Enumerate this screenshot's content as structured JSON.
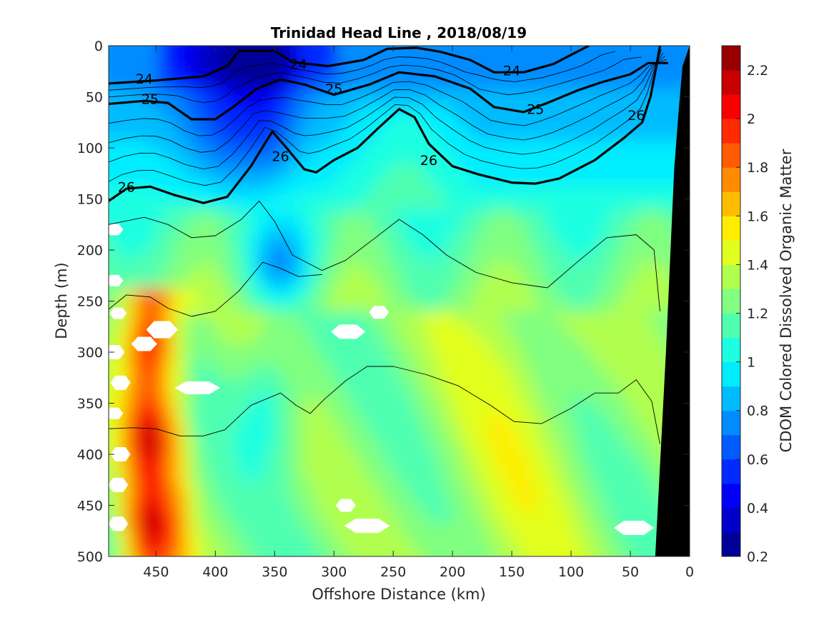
{
  "chart_data": {
    "type": "heatmap",
    "title": "Trinidad Head Line , 2018/08/19",
    "xlabel": "Offshore Distance (km)",
    "ylabel": "Depth (m)",
    "colorbar_label": "CDOM Colored Dissolved Organic Matter",
    "xlim": [
      490,
      0
    ],
    "ylim": [
      0,
      500
    ],
    "x_ticks": [
      450,
      400,
      350,
      300,
      250,
      200,
      150,
      100,
      50,
      0
    ],
    "y_ticks": [
      0,
      50,
      100,
      150,
      200,
      250,
      300,
      350,
      400,
      450,
      500
    ],
    "colorbar_ticks": [
      0.2,
      0.4,
      0.6,
      0.8,
      1,
      1.2,
      1.4,
      1.6,
      1.8,
      2,
      2.2
    ],
    "clim": [
      0.2,
      2.3
    ],
    "colormap": "jet",
    "grid": false,
    "contours": [
      {
        "level": 24,
        "label": "24",
        "bold": true,
        "points": [
          [
            490,
            37
          ],
          [
            450,
            34
          ],
          [
            410,
            30
          ],
          [
            390,
            20
          ],
          [
            380,
            5
          ],
          [
            350,
            5
          ],
          [
            335,
            16
          ],
          [
            305,
            20
          ],
          [
            275,
            14
          ],
          [
            255,
            3
          ],
          [
            230,
            2
          ],
          [
            210,
            6
          ],
          [
            185,
            14
          ],
          [
            165,
            26
          ],
          [
            140,
            26
          ],
          [
            115,
            18
          ],
          [
            95,
            6
          ],
          [
            85,
            0
          ]
        ]
      },
      {
        "level": 25,
        "label": "25",
        "bold": true,
        "points": [
          [
            490,
            57
          ],
          [
            460,
            54
          ],
          [
            440,
            56
          ],
          [
            420,
            72
          ],
          [
            400,
            72
          ],
          [
            385,
            60
          ],
          [
            365,
            42
          ],
          [
            345,
            33
          ],
          [
            325,
            38
          ],
          [
            300,
            48
          ],
          [
            270,
            38
          ],
          [
            245,
            26
          ],
          [
            215,
            30
          ],
          [
            185,
            42
          ],
          [
            165,
            60
          ],
          [
            140,
            65
          ],
          [
            120,
            56
          ],
          [
            95,
            44
          ],
          [
            75,
            36
          ],
          [
            50,
            28
          ],
          [
            35,
            17
          ],
          [
            18,
            17
          ]
        ]
      },
      {
        "level": 26,
        "label": "26",
        "bold": true,
        "points": [
          [
            490,
            152
          ],
          [
            475,
            140
          ],
          [
            455,
            138
          ],
          [
            435,
            146
          ],
          [
            410,
            154
          ],
          [
            390,
            148
          ],
          [
            370,
            118
          ],
          [
            352,
            84
          ],
          [
            340,
            100
          ],
          [
            325,
            121
          ],
          [
            315,
            124
          ],
          [
            300,
            112
          ],
          [
            280,
            100
          ],
          [
            262,
            80
          ],
          [
            245,
            62
          ],
          [
            232,
            70
          ],
          [
            220,
            96
          ],
          [
            200,
            118
          ],
          [
            178,
            126
          ],
          [
            150,
            134
          ],
          [
            130,
            135
          ],
          [
            110,
            130
          ],
          [
            80,
            112
          ],
          [
            55,
            90
          ],
          [
            40,
            75
          ],
          [
            33,
            50
          ],
          [
            28,
            20
          ],
          [
            25,
            0
          ]
        ]
      },
      {
        "level": 26.5,
        "label": "",
        "bold": false,
        "points": [
          [
            490,
            175
          ],
          [
            460,
            168
          ],
          [
            440,
            175
          ],
          [
            420,
            188
          ],
          [
            400,
            186
          ],
          [
            378,
            170
          ],
          [
            363,
            152
          ],
          [
            350,
            172
          ],
          [
            335,
            205
          ],
          [
            310,
            220
          ],
          [
            290,
            210
          ],
          [
            265,
            188
          ],
          [
            245,
            170
          ],
          [
            225,
            185
          ],
          [
            205,
            205
          ],
          [
            180,
            222
          ],
          [
            150,
            232
          ],
          [
            120,
            237
          ],
          [
            95,
            212
          ],
          [
            70,
            188
          ],
          [
            45,
            185
          ],
          [
            30,
            200
          ],
          [
            25,
            260
          ]
        ]
      },
      {
        "level": 26.7,
        "label": "",
        "bold": false,
        "points": [
          [
            490,
            258
          ],
          [
            475,
            244
          ],
          [
            455,
            246
          ],
          [
            440,
            257
          ],
          [
            420,
            265
          ],
          [
            400,
            260
          ],
          [
            380,
            240
          ],
          [
            360,
            212
          ],
          [
            345,
            218
          ],
          [
            330,
            226
          ],
          [
            310,
            224
          ]
        ]
      },
      {
        "level": 26.9,
        "label": "",
        "bold": false,
        "points": [
          [
            490,
            375
          ],
          [
            470,
            374
          ],
          [
            450,
            375
          ],
          [
            430,
            382
          ],
          [
            410,
            382
          ],
          [
            392,
            376
          ],
          [
            370,
            352
          ],
          [
            345,
            340
          ],
          [
            332,
            352
          ],
          [
            320,
            360
          ],
          [
            308,
            346
          ],
          [
            290,
            328
          ],
          [
            272,
            314
          ],
          [
            250,
            314
          ],
          [
            222,
            322
          ],
          [
            195,
            333
          ],
          [
            168,
            352
          ],
          [
            148,
            368
          ],
          [
            125,
            370
          ],
          [
            100,
            355
          ],
          [
            80,
            340
          ],
          [
            60,
            340
          ],
          [
            45,
            327
          ],
          [
            32,
            348
          ],
          [
            25,
            390
          ]
        ]
      }
    ],
    "missing_data_note": "",
    "bathymetry_color": "#000000"
  }
}
